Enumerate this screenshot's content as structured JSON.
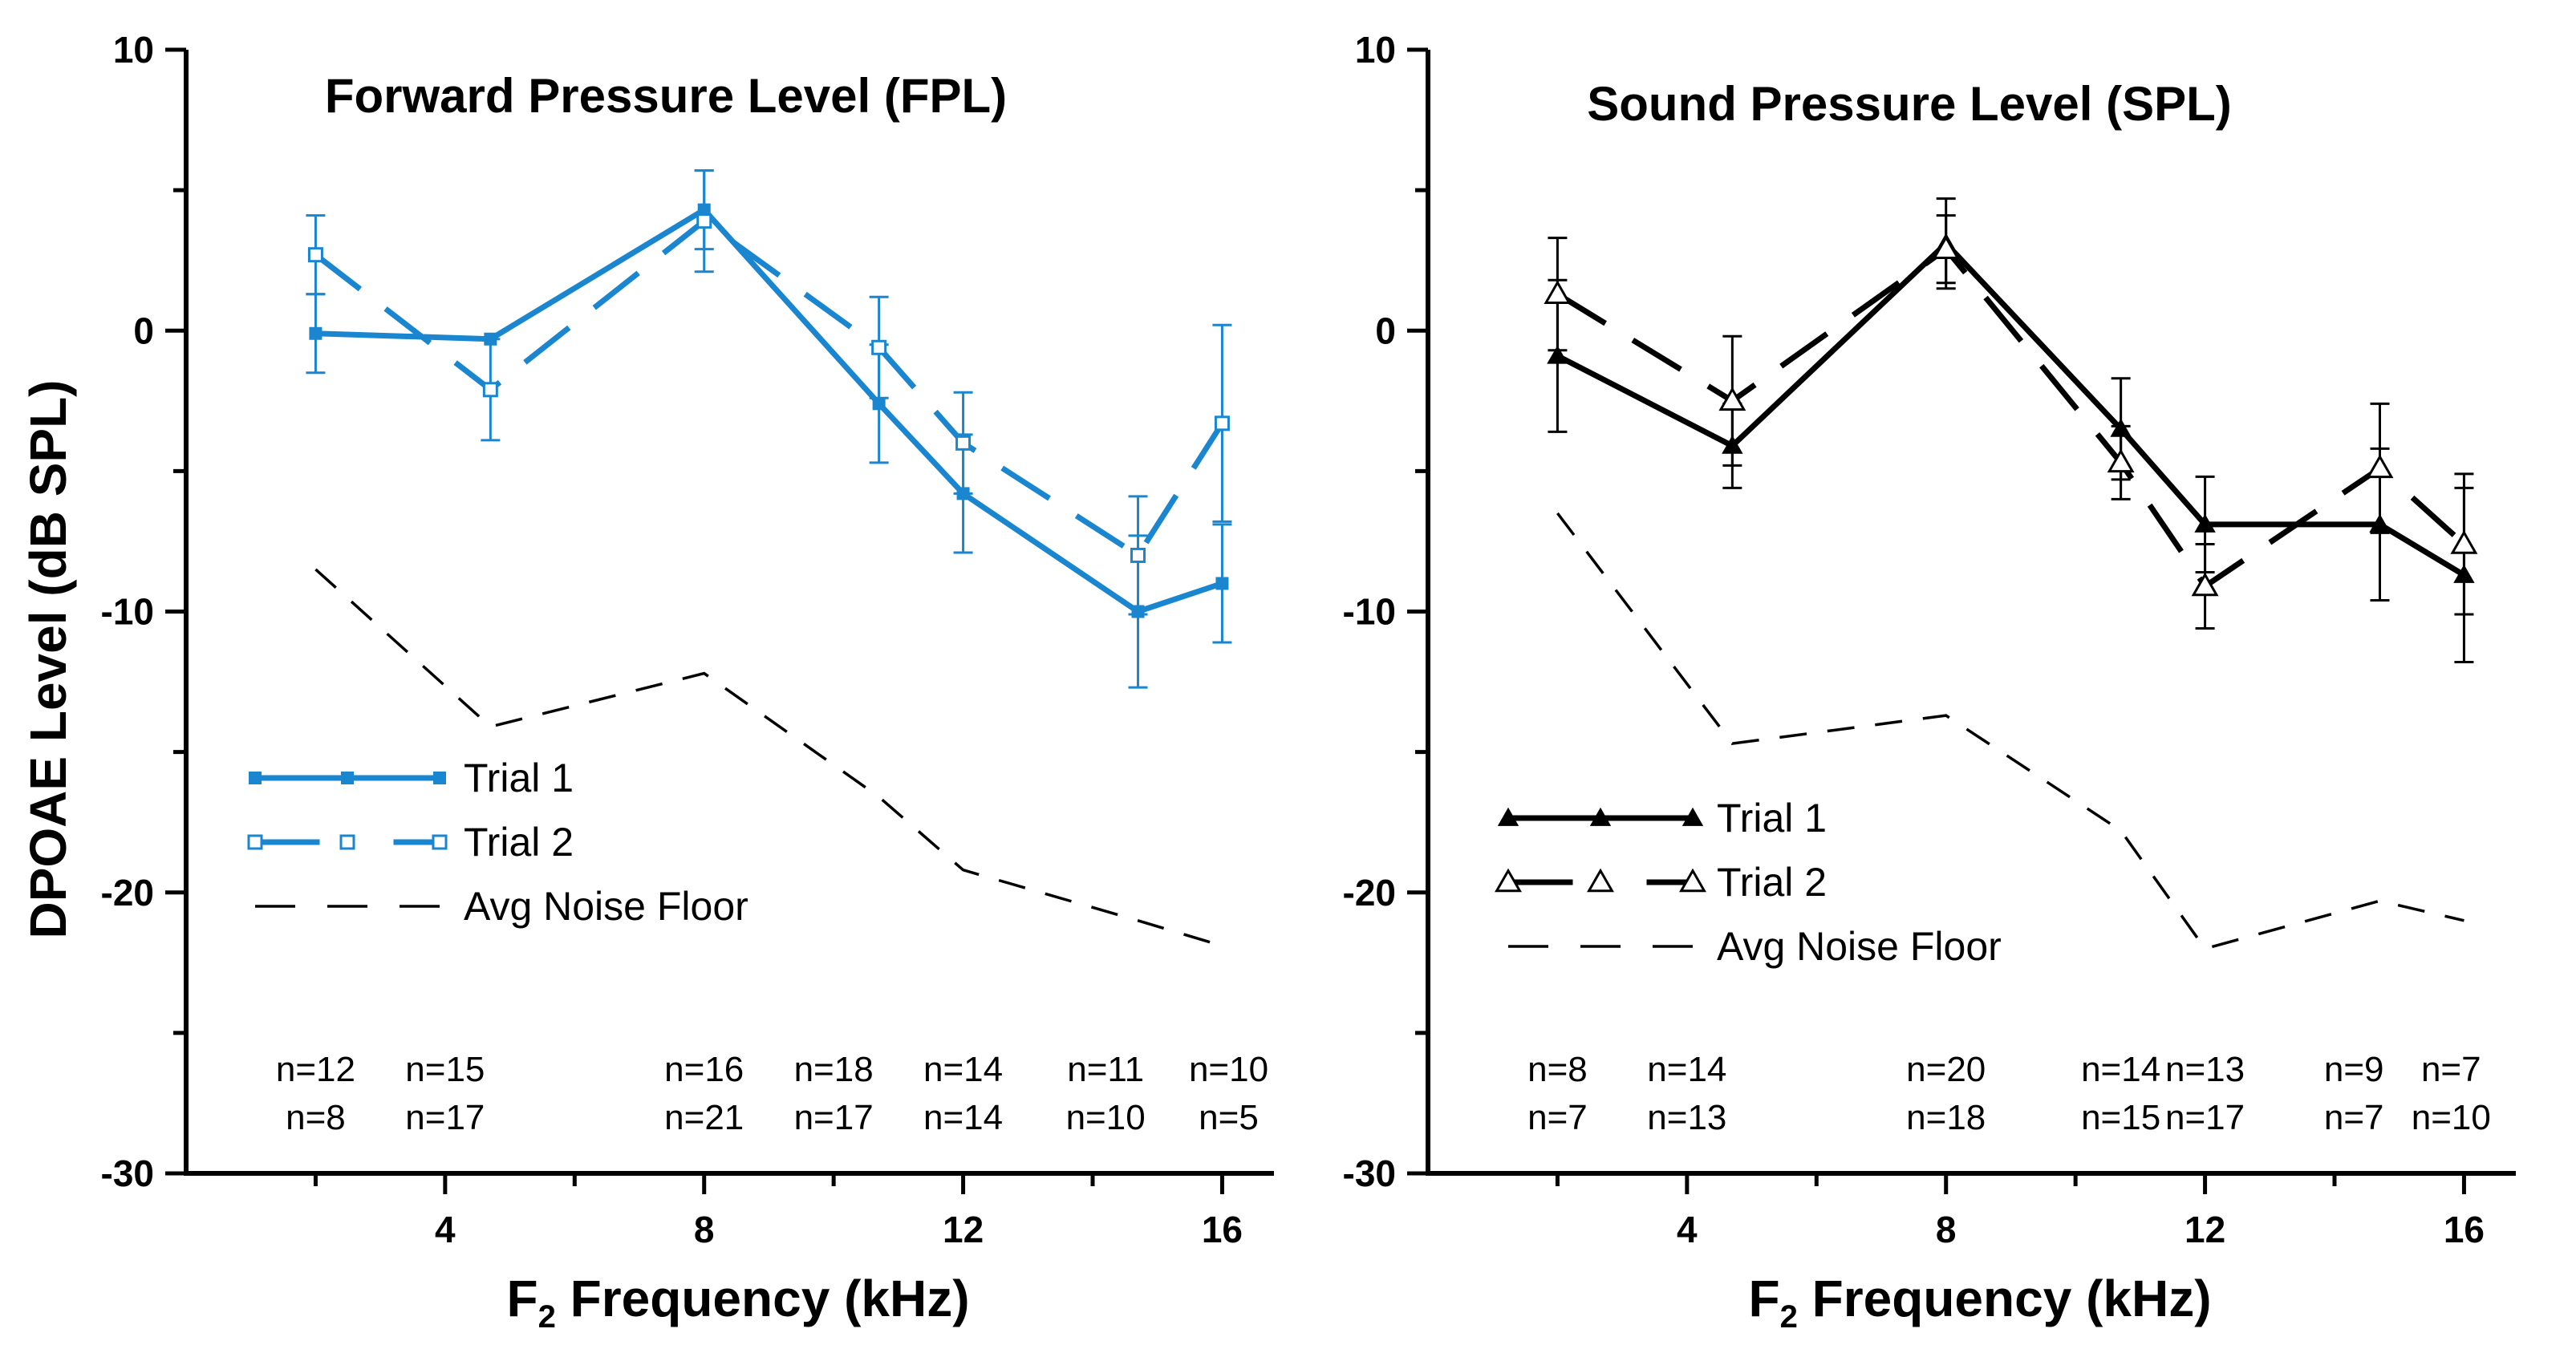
{
  "y_axis_title": "DPOAE Level (dB SPL)",
  "chart_data": [
    {
      "type": "line",
      "title": "Forward Pressure Level (FPL)",
      "xlabel_main": "F",
      "xlabel_sub": "2",
      "xlabel_rest": " Frequency (kHz)",
      "xlim": [
        0,
        16.8
      ],
      "ylim": [
        -30,
        10
      ],
      "xticks": [
        4,
        8,
        12,
        16
      ],
      "yticks": [
        10,
        0,
        -10,
        -20,
        -30
      ],
      "color": "#1a86d0",
      "series": [
        {
          "name": "Trial 1",
          "style": "solid",
          "marker": "filled-square",
          "x": [
            2,
            4.7,
            8,
            10.7,
            12,
            14.7,
            16
          ],
          "y": [
            -0.1,
            -0.3,
            4.3,
            -2.6,
            -5.8,
            -10.0,
            -9.0
          ],
          "err": [
            1.4,
            0,
            1.4,
            2.1,
            2.1,
            2.7,
            2.1
          ]
        },
        {
          "name": "Trial 2",
          "style": "dashed",
          "marker": "open-square",
          "x": [
            2,
            4.7,
            8,
            10.7,
            12,
            14.7,
            16
          ],
          "y": [
            2.7,
            -2.1,
            3.9,
            -0.6,
            -4.0,
            -8.0,
            -3.3
          ],
          "err": [
            1.4,
            1.8,
            1.8,
            1.8,
            1.8,
            2.1,
            3.5
          ]
        },
        {
          "name": "Avg Noise Floor",
          "style": "noise",
          "x": [
            2,
            4.7,
            8,
            10.7,
            12,
            14.7,
            16
          ],
          "y": [
            -8.5,
            -14.1,
            -12.2,
            -16.6,
            -19.2,
            -21.0,
            -21.9
          ]
        }
      ],
      "n_labels": [
        {
          "x": 2,
          "n1": "n=12",
          "n2": "n=8"
        },
        {
          "x": 4,
          "n1": "n=15",
          "n2": "n=17"
        },
        {
          "x": 8,
          "n1": "n=16",
          "n2": "n=21"
        },
        {
          "x": 10,
          "n1": "n=18",
          "n2": "n=17"
        },
        {
          "x": 12,
          "n1": "n=14",
          "n2": "n=14"
        },
        {
          "x": 14.2,
          "n1": "n=11",
          "n2": "n=10"
        },
        {
          "x": 16.1,
          "n1": "n=10",
          "n2": "n=5"
        }
      ]
    },
    {
      "type": "line",
      "title": "Sound Pressure Level (SPL)",
      "xlabel_main": "F",
      "xlabel_sub": "2",
      "xlabel_rest": " Frequency (kHz)",
      "xlim": [
        0,
        16.8
      ],
      "ylim": [
        -30,
        10
      ],
      "xticks": [
        4,
        8,
        12,
        16
      ],
      "yticks": [
        10,
        0,
        -10,
        -20,
        -30
      ],
      "color": "#000000",
      "series": [
        {
          "name": "Trial 1",
          "style": "solid",
          "marker": "filled-triangle",
          "x": [
            2,
            4.7,
            8,
            10.7,
            12,
            14.7,
            16
          ],
          "y": [
            -0.9,
            -4.1,
            3.1,
            -3.5,
            -6.9,
            -6.9,
            -8.7
          ],
          "err": [
            2.7,
            1.5,
            1.6,
            1.8,
            1.7,
            2.7,
            3.1
          ]
        },
        {
          "name": "Trial 2",
          "style": "dashed",
          "marker": "open-triangle",
          "x": [
            2,
            4.7,
            8,
            10.7,
            12,
            14.7,
            16
          ],
          "y": [
            1.3,
            -2.5,
            2.9,
            -4.7,
            -9.1,
            -4.9,
            -7.6
          ],
          "err": [
            2.0,
            2.3,
            1.2,
            1.3,
            1.5,
            2.3,
            2.5
          ]
        },
        {
          "name": "Avg Noise Floor",
          "style": "noise",
          "x": [
            2,
            4.7,
            8,
            10.7,
            12,
            14.7,
            16
          ],
          "y": [
            -6.5,
            -14.7,
            -13.7,
            -17.8,
            -22.0,
            -20.3,
            -21.0
          ]
        }
      ],
      "n_labels": [
        {
          "x": 2,
          "n1": "n=8",
          "n2": "n=7"
        },
        {
          "x": 4,
          "n1": "n=14",
          "n2": "n=13"
        },
        {
          "x": 8,
          "n1": "n=20",
          "n2": "n=18"
        },
        {
          "x": 10.7,
          "n1": "n=14",
          "n2": "n=15"
        },
        {
          "x": 12,
          "n1": "n=13",
          "n2": "n=17"
        },
        {
          "x": 14.3,
          "n1": "n=9",
          "n2": "n=7"
        },
        {
          "x": 15.8,
          "n1": "n=7",
          "n2": "n=10"
        }
      ]
    }
  ]
}
